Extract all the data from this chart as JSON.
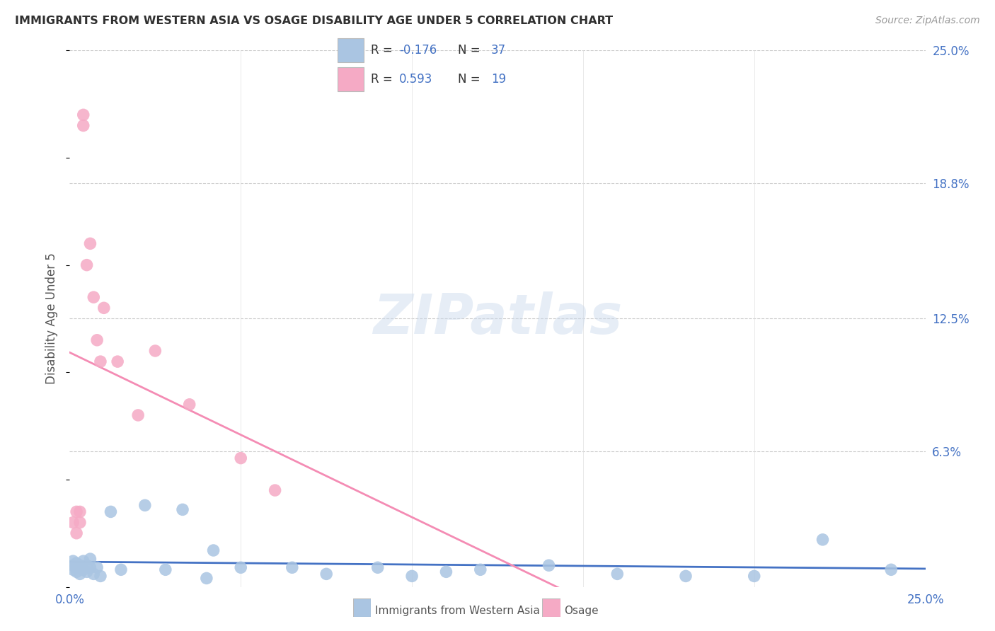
{
  "title": "IMMIGRANTS FROM WESTERN ASIA VS OSAGE DISABILITY AGE UNDER 5 CORRELATION CHART",
  "source": "Source: ZipAtlas.com",
  "ylabel": "Disability Age Under 5",
  "xlim": [
    0.0,
    0.25
  ],
  "ylim": [
    0.0,
    0.25
  ],
  "ytick_labels_right": [
    "25.0%",
    "18.8%",
    "12.5%",
    "6.3%"
  ],
  "ytick_positions_right": [
    0.25,
    0.188,
    0.125,
    0.063
  ],
  "blue_color": "#aac5e2",
  "pink_color": "#f5aac5",
  "blue_line_color": "#4472c4",
  "pink_line_color": "#f48cb4",
  "r_blue": -0.176,
  "n_blue": 37,
  "r_pink": 0.593,
  "n_pink": 19,
  "blue_scatter_x": [
    0.001,
    0.001,
    0.001,
    0.002,
    0.002,
    0.002,
    0.003,
    0.003,
    0.004,
    0.004,
    0.005,
    0.005,
    0.006,
    0.006,
    0.007,
    0.008,
    0.009,
    0.012,
    0.015,
    0.022,
    0.028,
    0.033,
    0.04,
    0.042,
    0.05,
    0.065,
    0.075,
    0.09,
    0.1,
    0.11,
    0.12,
    0.14,
    0.16,
    0.18,
    0.2,
    0.22,
    0.24
  ],
  "blue_scatter_y": [
    0.008,
    0.01,
    0.012,
    0.007,
    0.009,
    0.011,
    0.006,
    0.01,
    0.008,
    0.012,
    0.007,
    0.01,
    0.009,
    0.013,
    0.006,
    0.009,
    0.005,
    0.035,
    0.008,
    0.038,
    0.008,
    0.036,
    0.004,
    0.017,
    0.009,
    0.009,
    0.006,
    0.009,
    0.005,
    0.007,
    0.008,
    0.01,
    0.006,
    0.005,
    0.005,
    0.022,
    0.008
  ],
  "pink_scatter_x": [
    0.001,
    0.002,
    0.002,
    0.003,
    0.003,
    0.004,
    0.004,
    0.005,
    0.006,
    0.007,
    0.008,
    0.009,
    0.01,
    0.014,
    0.02,
    0.025,
    0.035,
    0.05,
    0.06
  ],
  "pink_scatter_y": [
    0.03,
    0.025,
    0.035,
    0.03,
    0.035,
    0.22,
    0.215,
    0.15,
    0.16,
    0.135,
    0.115,
    0.105,
    0.13,
    0.105,
    0.08,
    0.11,
    0.085,
    0.06,
    0.045
  ],
  "background_color": "#ffffff",
  "grid_color": "#cccccc",
  "title_color": "#303030",
  "axis_text_color": "#555555",
  "watermark": "ZIPatlas"
}
